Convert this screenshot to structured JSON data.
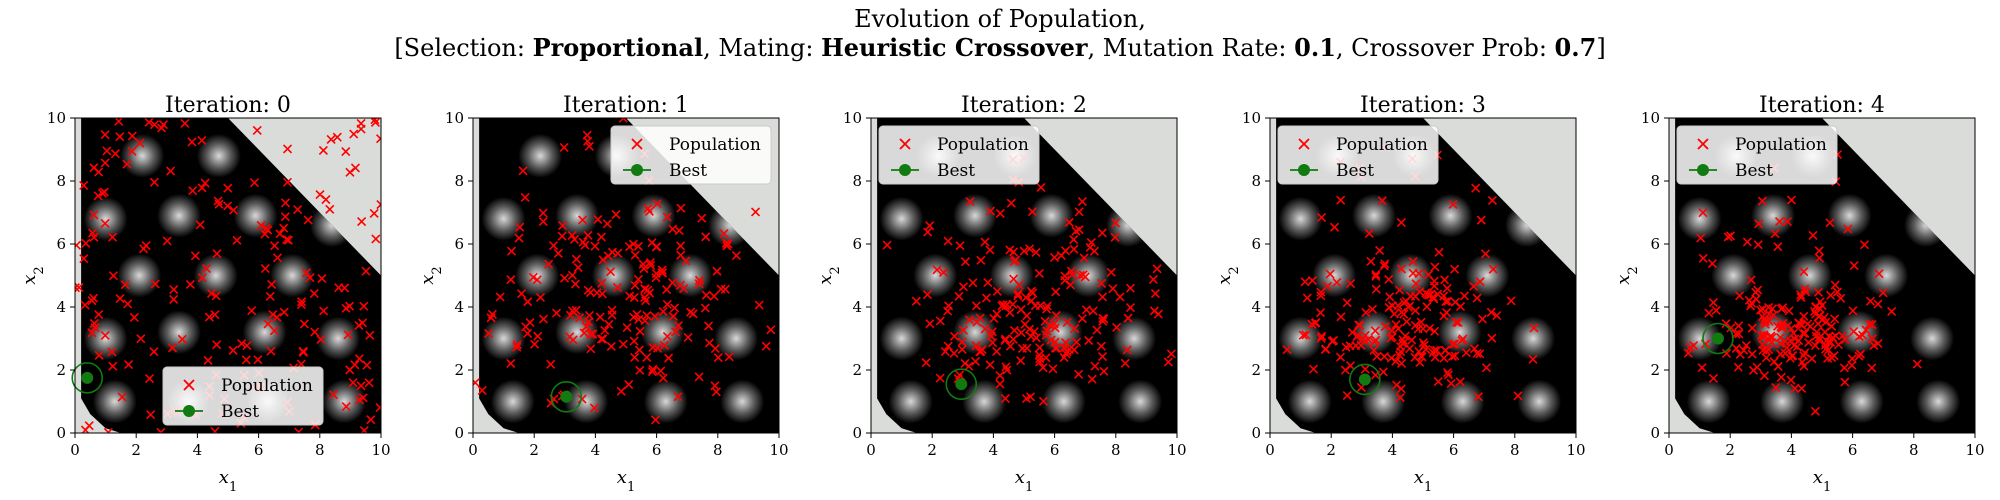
{
  "figure": {
    "title_line1": "Evolution of Population,",
    "title_line2": {
      "open": "[Selection: ",
      "selection": "Proportional",
      "mid1": ", Mating: ",
      "mating": "Heuristic Crossover",
      "mid2": ", Mutation Rate: ",
      "mutation_rate": "0.1",
      "mid3": ", Crossover Prob: ",
      "crossover_prob": "0.7",
      "close": "]"
    }
  },
  "chart_data": [
    {
      "type": "scatter",
      "title": "Iteration: 0",
      "xlabel": "x1",
      "ylabel": "x2",
      "xlim": [
        0,
        10
      ],
      "ylim": [
        0,
        10
      ],
      "xticks": [
        0,
        2,
        4,
        6,
        8,
        10
      ],
      "yticks": [
        0,
        2,
        4,
        6,
        8,
        10
      ],
      "legend": "bottom-center",
      "series": [
        {
          "name": "Population",
          "marker": "x",
          "color": "#ff0000",
          "count": 200
        },
        {
          "name": "Best",
          "marker": "o",
          "color": "#117a11",
          "x": [
            0.4
          ],
          "y": [
            1.75
          ]
        }
      ]
    },
    {
      "type": "scatter",
      "title": "Iteration: 1",
      "xlabel": "x1",
      "ylabel": "x2",
      "xlim": [
        0,
        10
      ],
      "ylim": [
        0,
        10
      ],
      "xticks": [
        0,
        2,
        4,
        6,
        8,
        10
      ],
      "yticks": [
        0,
        2,
        4,
        6,
        8,
        10
      ],
      "legend": "top-right",
      "series": [
        {
          "name": "Population",
          "marker": "x",
          "color": "#ff0000",
          "count": 200
        },
        {
          "name": "Best",
          "marker": "o",
          "color": "#117a11",
          "x": [
            3.05
          ],
          "y": [
            1.15
          ]
        }
      ]
    },
    {
      "type": "scatter",
      "title": "Iteration: 2",
      "xlabel": "x1",
      "ylabel": "x2",
      "xlim": [
        0,
        10
      ],
      "ylim": [
        0,
        10
      ],
      "xticks": [
        0,
        2,
        4,
        6,
        8,
        10
      ],
      "yticks": [
        0,
        2,
        4,
        6,
        8,
        10
      ],
      "legend": "top-left",
      "series": [
        {
          "name": "Population",
          "marker": "x",
          "color": "#ff0000",
          "count": 200
        },
        {
          "name": "Best",
          "marker": "o",
          "color": "#117a11",
          "x": [
            2.95
          ],
          "y": [
            1.55
          ]
        }
      ]
    },
    {
      "type": "scatter",
      "title": "Iteration: 3",
      "xlabel": "x1",
      "ylabel": "x2",
      "xlim": [
        0,
        10
      ],
      "ylim": [
        0,
        10
      ],
      "xticks": [
        0,
        2,
        4,
        6,
        8,
        10
      ],
      "yticks": [
        0,
        2,
        4,
        6,
        8,
        10
      ],
      "legend": "top-left",
      "series": [
        {
          "name": "Population",
          "marker": "x",
          "color": "#ff0000",
          "count": 200
        },
        {
          "name": "Best",
          "marker": "o",
          "color": "#117a11",
          "x": [
            3.1
          ],
          "y": [
            1.7
          ]
        }
      ]
    },
    {
      "type": "scatter",
      "title": "Iteration: 4",
      "xlabel": "x1",
      "ylabel": "x2",
      "xlim": [
        0,
        10
      ],
      "ylim": [
        0,
        10
      ],
      "xticks": [
        0,
        2,
        4,
        6,
        8,
        10
      ],
      "yticks": [
        0,
        2,
        4,
        6,
        8,
        10
      ],
      "legend": "top-left",
      "series": [
        {
          "name": "Population",
          "marker": "x",
          "color": "#ff0000",
          "count": 200
        },
        {
          "name": "Best",
          "marker": "o",
          "color": "#117a11",
          "x": [
            1.6
          ],
          "y": [
            3.0
          ]
        }
      ]
    }
  ]
}
